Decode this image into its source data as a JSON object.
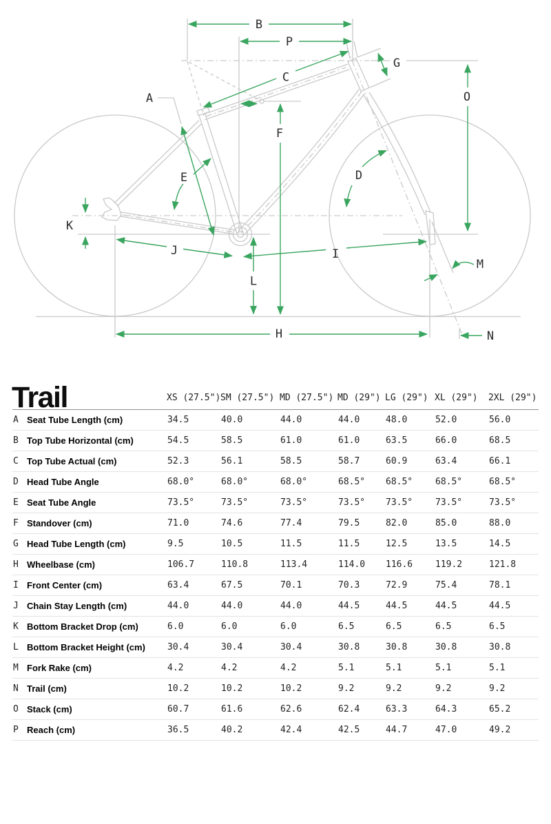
{
  "title": "Trail",
  "colors": {
    "dimension_green": "#3aa55f",
    "drawing_gray": "#c9c9c9"
  },
  "diagram": {
    "labels": {
      "a": "A",
      "b": "B",
      "c": "C",
      "d": "D",
      "e": "E",
      "f": "F",
      "g": "G",
      "h": "H",
      "i": "I",
      "j": "J",
      "k": "K",
      "l": "L",
      "m": "M",
      "n": "N",
      "o": "O",
      "p": "P"
    }
  },
  "table": {
    "columns": [
      "XS (27.5\")",
      "SM (27.5\")",
      "MD (27.5\")",
      "MD (29\")",
      "LG (29\")",
      "XL (29\")",
      "2XL (29\")"
    ],
    "rows": [
      {
        "letter": "A",
        "label": "Seat Tube Length (cm)",
        "values": [
          "34.5",
          "40.0",
          "44.0",
          "44.0",
          "48.0",
          "52.0",
          "56.0"
        ]
      },
      {
        "letter": "B",
        "label": "Top Tube Horizontal (cm)",
        "values": [
          "54.5",
          "58.5",
          "61.0",
          "61.0",
          "63.5",
          "66.0",
          "68.5"
        ]
      },
      {
        "letter": "C",
        "label": "Top Tube Actual (cm)",
        "values": [
          "52.3",
          "56.1",
          "58.5",
          "58.7",
          "60.9",
          "63.4",
          "66.1"
        ]
      },
      {
        "letter": "D",
        "label": "Head Tube Angle",
        "values": [
          "68.0°",
          "68.0°",
          "68.0°",
          "68.5°",
          "68.5°",
          "68.5°",
          "68.5°"
        ]
      },
      {
        "letter": "E",
        "label": "Seat Tube Angle",
        "values": [
          "73.5°",
          "73.5°",
          "73.5°",
          "73.5°",
          "73.5°",
          "73.5°",
          "73.5°"
        ]
      },
      {
        "letter": "F",
        "label": "Standover (cm)",
        "values": [
          "71.0",
          "74.6",
          "77.4",
          "79.5",
          "82.0",
          "85.0",
          "88.0"
        ]
      },
      {
        "letter": "G",
        "label": "Head Tube Length (cm)",
        "values": [
          "9.5",
          "10.5",
          "11.5",
          "11.5",
          "12.5",
          "13.5",
          "14.5"
        ]
      },
      {
        "letter": "H",
        "label": "Wheelbase (cm)",
        "values": [
          "106.7",
          "110.8",
          "113.4",
          "114.0",
          "116.6",
          "119.2",
          "121.8"
        ]
      },
      {
        "letter": "I",
        "label": "Front Center (cm)",
        "values": [
          "63.4",
          "67.5",
          "70.1",
          "70.3",
          "72.9",
          "75.4",
          "78.1"
        ]
      },
      {
        "letter": "J",
        "label": "Chain Stay Length (cm)",
        "values": [
          "44.0",
          "44.0",
          "44.0",
          "44.5",
          "44.5",
          "44.5",
          "44.5"
        ]
      },
      {
        "letter": "K",
        "label": "Bottom Bracket Drop (cm)",
        "values": [
          "6.0",
          "6.0",
          "6.0",
          "6.5",
          "6.5",
          "6.5",
          "6.5"
        ]
      },
      {
        "letter": "L",
        "label": "Bottom Bracket Height (cm)",
        "values": [
          "30.4",
          "30.4",
          "30.4",
          "30.8",
          "30.8",
          "30.8",
          "30.8"
        ]
      },
      {
        "letter": "M",
        "label": "Fork Rake (cm)",
        "values": [
          "4.2",
          "4.2",
          "4.2",
          "5.1",
          "5.1",
          "5.1",
          "5.1"
        ]
      },
      {
        "letter": "N",
        "label": "Trail (cm)",
        "values": [
          "10.2",
          "10.2",
          "10.2",
          "9.2",
          "9.2",
          "9.2",
          "9.2"
        ]
      },
      {
        "letter": "O",
        "label": "Stack (cm)",
        "values": [
          "60.7",
          "61.6",
          "62.6",
          "62.4",
          "63.3",
          "64.3",
          "65.2"
        ]
      },
      {
        "letter": "P",
        "label": "Reach (cm)",
        "values": [
          "36.5",
          "40.2",
          "42.4",
          "42.5",
          "44.7",
          "47.0",
          "49.2"
        ]
      }
    ]
  }
}
